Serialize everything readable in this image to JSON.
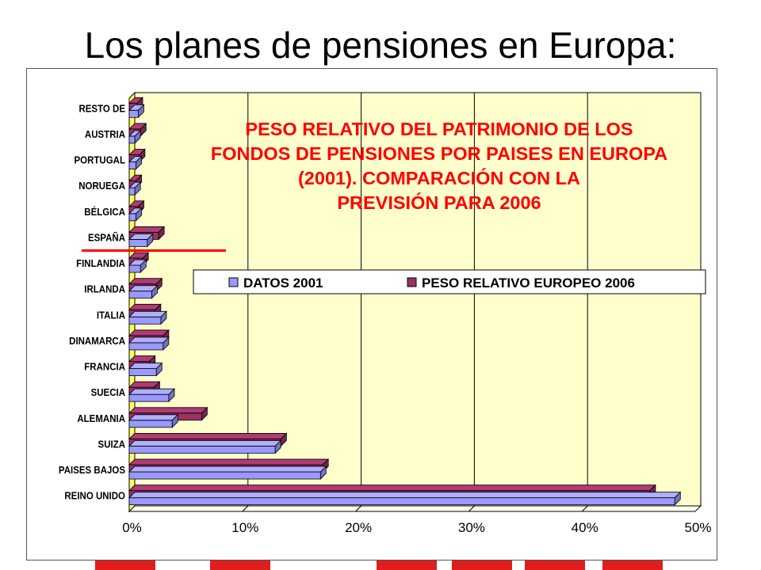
{
  "slide": {
    "title": "Los planes de pensiones en Europa:"
  },
  "colors": {
    "plot_background": "#ffffcc",
    "wall": "#ffff66",
    "datos_2001": "#9999ff",
    "peso_2006": "#993366",
    "chart_title": "#ff0000",
    "highlight_line": "#ff0000",
    "decoration": "#e01e1e"
  },
  "chart_data": {
    "type": "bar",
    "orientation": "horizontal",
    "title_lines": [
      "PESO RELATIVO DEL PATRIMONIO DE LOS",
      "FONDOS DE PENSIONES POR PAISES EN EUROPA",
      "(2001). COMPARACIÓN CON LA",
      "PREVISIÓN PARA 2006"
    ],
    "categories": [
      "REINO UNIDO",
      "PAISES BAJOS",
      "SUIZA",
      "ALEMANIA",
      "SUECIA",
      "FRANCIA",
      "DINAMARCA",
      "ITALIA",
      "IRLANDA",
      "FINLANDIA",
      "ESPAÑA",
      "BÉLGICA",
      "NORUEGA",
      "PORTUGAL",
      "AUSTRIA",
      "RESTO DE"
    ],
    "series": [
      {
        "name": "DATOS 2001",
        "values": [
          48.2,
          16.9,
          12.9,
          3.8,
          3.5,
          2.4,
          3.0,
          2.8,
          2.0,
          1.0,
          1.6,
          0.6,
          0.5,
          0.6,
          0.5,
          0.8
        ]
      },
      {
        "name": "PESO RELATIVO EUROPEO 2006",
        "values": [
          46.0,
          17.1,
          13.4,
          6.4,
          2.2,
          1.8,
          3.0,
          2.3,
          2.4,
          1.2,
          2.6,
          0.8,
          0.6,
          0.9,
          1.0,
          0.7
        ]
      }
    ],
    "xlim": [
      0,
      50
    ],
    "x_ticks": [
      "0%",
      "10%",
      "20%",
      "30%",
      "40%",
      "50%"
    ],
    "x_tick_values": [
      0,
      10,
      20,
      30,
      40,
      50
    ],
    "grid": true,
    "legend_position": "top-right",
    "highlight_category": "ESPAÑA"
  }
}
